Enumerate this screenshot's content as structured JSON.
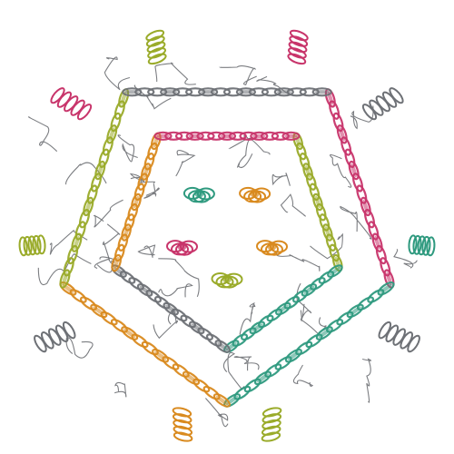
{
  "image": {
    "description_kind": "protein-cartoon-ribbon",
    "background_color": "#ffffff",
    "symmetry_fold": 5,
    "palette": [
      "#c8356b",
      "#2f9a7f",
      "#d98a1f",
      "#9aab2a",
      "#6e7176"
    ],
    "rings": [
      {
        "name": "outer-helix-ring",
        "colors_by_sector": [
          "#c8356b",
          "#2f9a7f",
          "#d98a1f",
          "#9aab2a",
          "#6e7176"
        ]
      },
      {
        "name": "middle-helix-ring",
        "colors_by_sector": [
          "#9aab2a",
          "#2f9a7f",
          "#6e7176",
          "#d98a1f",
          "#c8356b"
        ]
      },
      {
        "name": "inner-domains",
        "colors_by_sector": [
          "#d98a1f",
          "#d98a1f",
          "#9aab2a",
          "#c8356b",
          "#2f9a7f"
        ]
      }
    ],
    "peripheral_helix_bundles": [
      "#c8356b",
      "#6e7176",
      "#2f9a7f",
      "#6e7176",
      "#9aab2a",
      "#d98a1f",
      "#6e7176",
      "#9aab2a",
      "#c8356b",
      "#9aab2a"
    ]
  }
}
